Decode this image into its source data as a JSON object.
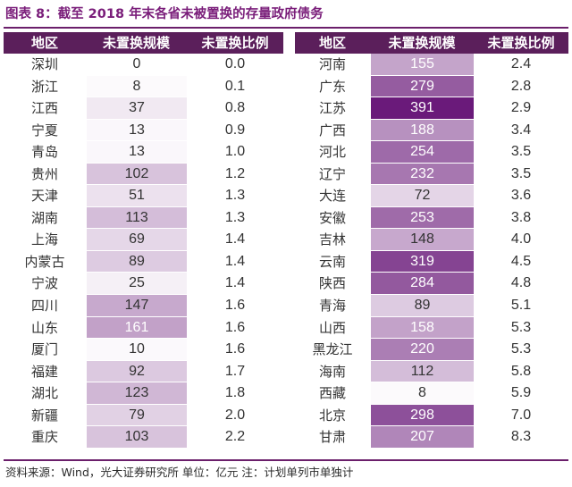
{
  "title": "图表 8：截至 2018 年末各省未被置换的存量政府债务",
  "headers": {
    "region": "地区",
    "amount": "未置换规模",
    "ratio": "未置换比例"
  },
  "max_amount": 391,
  "heat_color_low": "#ffffff",
  "heat_color_high": "#6a1a7a",
  "left_rows": [
    {
      "region": "深圳",
      "amount": 0,
      "ratio": "0.0"
    },
    {
      "region": "浙江",
      "amount": 8,
      "ratio": "0.1"
    },
    {
      "region": "江西",
      "amount": 37,
      "ratio": "0.8"
    },
    {
      "region": "宁夏",
      "amount": 13,
      "ratio": "0.9"
    },
    {
      "region": "青岛",
      "amount": 13,
      "ratio": "1.0"
    },
    {
      "region": "贵州",
      "amount": 102,
      "ratio": "1.2"
    },
    {
      "region": "天津",
      "amount": 51,
      "ratio": "1.3"
    },
    {
      "region": "湖南",
      "amount": 113,
      "ratio": "1.3"
    },
    {
      "region": "上海",
      "amount": 69,
      "ratio": "1.4"
    },
    {
      "region": "内蒙古",
      "amount": 89,
      "ratio": "1.4"
    },
    {
      "region": "宁波",
      "amount": 25,
      "ratio": "1.4"
    },
    {
      "region": "四川",
      "amount": 147,
      "ratio": "1.6"
    },
    {
      "region": "山东",
      "amount": 161,
      "ratio": "1.6"
    },
    {
      "region": "厦门",
      "amount": 10,
      "ratio": "1.6"
    },
    {
      "region": "福建",
      "amount": 92,
      "ratio": "1.7"
    },
    {
      "region": "湖北",
      "amount": 123,
      "ratio": "1.8"
    },
    {
      "region": "新疆",
      "amount": 79,
      "ratio": "2.0"
    },
    {
      "region": "重庆",
      "amount": 103,
      "ratio": "2.2"
    }
  ],
  "right_rows": [
    {
      "region": "河南",
      "amount": 155,
      "ratio": "2.4"
    },
    {
      "region": "广东",
      "amount": 279,
      "ratio": "2.8"
    },
    {
      "region": "江苏",
      "amount": 391,
      "ratio": "2.9"
    },
    {
      "region": "广西",
      "amount": 188,
      "ratio": "3.4"
    },
    {
      "region": "河北",
      "amount": 254,
      "ratio": "3.5"
    },
    {
      "region": "辽宁",
      "amount": 232,
      "ratio": "3.5"
    },
    {
      "region": "大连",
      "amount": 72,
      "ratio": "3.6"
    },
    {
      "region": "安徽",
      "amount": 253,
      "ratio": "3.8"
    },
    {
      "region": "吉林",
      "amount": 148,
      "ratio": "4.0"
    },
    {
      "region": "云南",
      "amount": 319,
      "ratio": "4.5"
    },
    {
      "region": "陕西",
      "amount": 284,
      "ratio": "4.8"
    },
    {
      "region": "青海",
      "amount": 89,
      "ratio": "5.1"
    },
    {
      "region": "山西",
      "amount": 158,
      "ratio": "5.3"
    },
    {
      "region": "黑龙江",
      "amount": 220,
      "ratio": "5.3"
    },
    {
      "region": "海南",
      "amount": 112,
      "ratio": "5.8"
    },
    {
      "region": "西藏",
      "amount": 8,
      "ratio": "5.9"
    },
    {
      "region": "北京",
      "amount": 298,
      "ratio": "7.0"
    },
    {
      "region": "甘肃",
      "amount": 207,
      "ratio": "8.3"
    }
  ],
  "footer": "资料来源：Wind，光大证券研究所   单位：亿元  注：计划单列市单独计"
}
